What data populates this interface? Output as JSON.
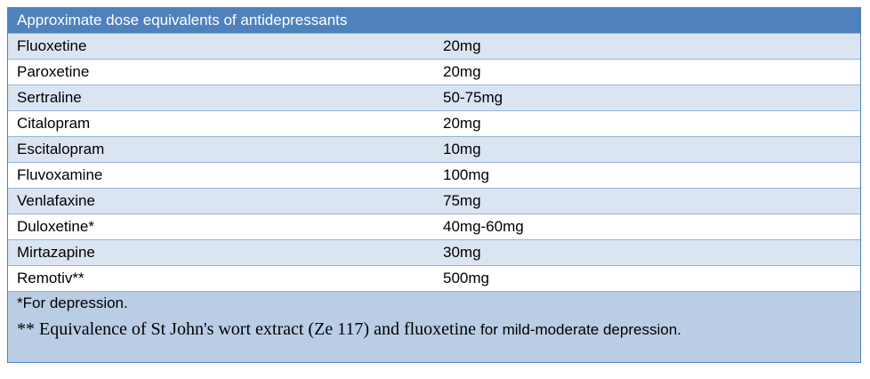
{
  "header": {
    "title": "Approximate dose equivalents of antidepressants"
  },
  "table": {
    "rows": [
      [
        "Fluoxetine",
        "20mg"
      ],
      [
        "Paroxetine",
        "20mg"
      ],
      [
        "Sertraline",
        "50-75mg"
      ],
      [
        "Citalopram",
        "20mg"
      ],
      [
        "Escitalopram",
        "10mg"
      ],
      [
        "Fluvoxamine",
        "100mg"
      ],
      [
        "Venlafaxine",
        "75mg"
      ],
      [
        "Duloxetine*",
        "40mg-60mg"
      ],
      [
        "Mirtazapine",
        "30mg"
      ],
      [
        "Remotiv**",
        "500mg"
      ]
    ]
  },
  "notes": [
    "*For depression.",
    [
      "** Equivalence of St John's wort extract (Ze 117) and fluoxetine",
      "for mild-moderate depression."
    ]
  ]
}
